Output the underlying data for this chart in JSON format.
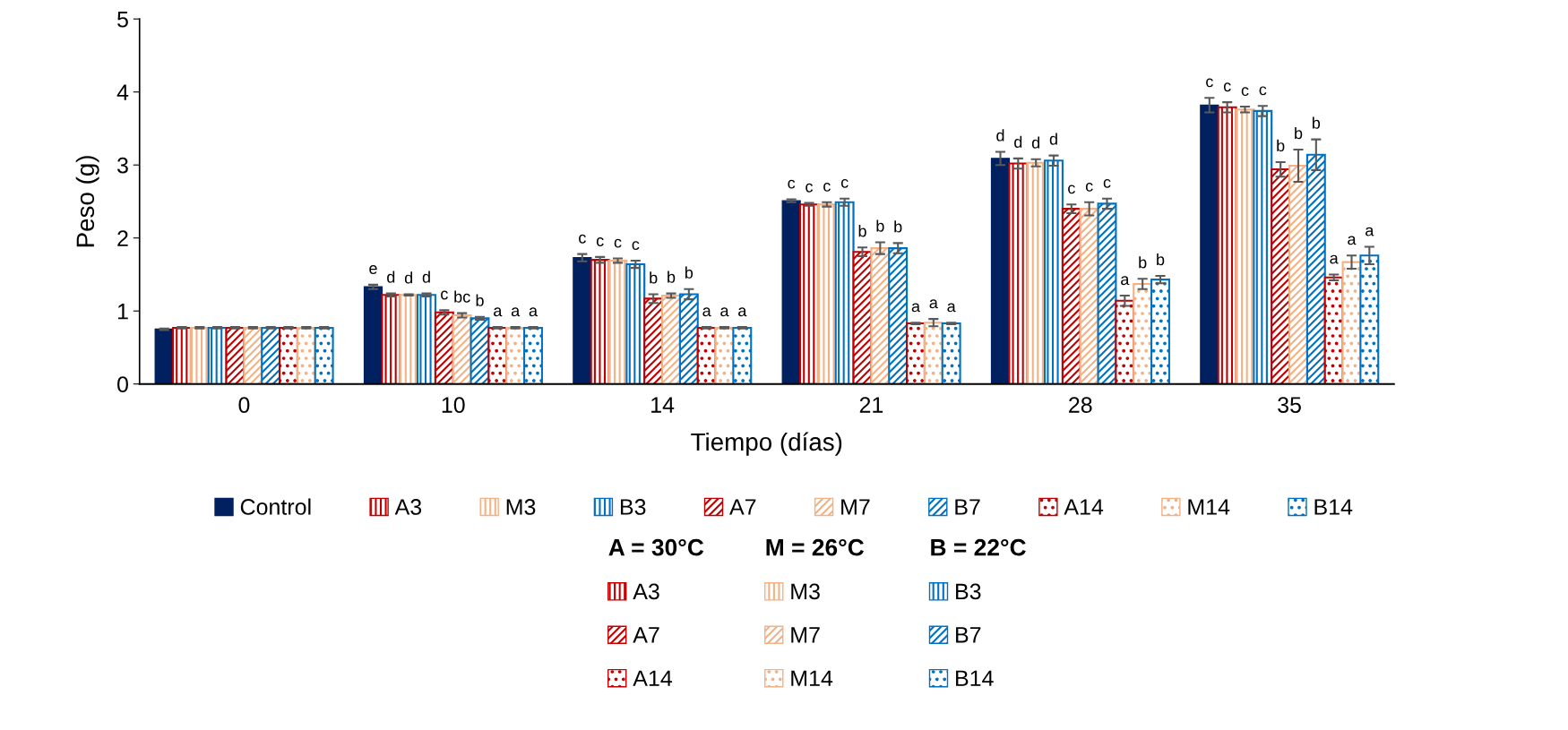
{
  "chart_data": {
    "type": "bar",
    "xlabel": "Tiempo (días)",
    "ylabel": "Peso (g)",
    "categories": [
      "0",
      "10",
      "14",
      "21",
      "28",
      "35"
    ],
    "ylim": [
      0,
      5
    ],
    "yticks": [
      0,
      1,
      2,
      3,
      4,
      5
    ],
    "grid": false,
    "legend": "bottom",
    "annotations": [
      "A = 30°C",
      "M = 26°C",
      "B = 22°C"
    ],
    "series": [
      {
        "name": "Control",
        "color": "#002060",
        "values": [
          0.75,
          1.33,
          1.73,
          2.51,
          3.09,
          3.82
        ],
        "errors": [
          0.01,
          0.03,
          0.05,
          0.02,
          0.09,
          0.1
        ],
        "value_labels": [
          null,
          "e",
          "c",
          "c",
          "d",
          "c"
        ]
      },
      {
        "name": "A3",
        "color": "#c00000",
        "values": [
          0.77,
          1.22,
          1.7,
          2.46,
          3.02,
          3.79
        ],
        "errors": [
          0.01,
          0.02,
          0.04,
          0.02,
          0.07,
          0.07
        ],
        "value_labels": [
          null,
          "d",
          "c",
          "c",
          "d",
          "c"
        ]
      },
      {
        "name": "M3",
        "color": "#f4b183",
        "values": [
          0.77,
          1.22,
          1.69,
          2.46,
          3.03,
          3.76
        ],
        "errors": [
          0.01,
          0.01,
          0.03,
          0.03,
          0.05,
          0.04
        ],
        "value_labels": [
          null,
          "d",
          "c",
          "c",
          "d",
          "c"
        ]
      },
      {
        "name": "B3",
        "color": "#0070c0",
        "values": [
          0.77,
          1.22,
          1.64,
          2.49,
          3.06,
          3.74
        ],
        "errors": [
          0.01,
          0.02,
          0.05,
          0.05,
          0.07,
          0.07
        ],
        "value_labels": [
          null,
          "d",
          "c",
          "c",
          "d",
          "c"
        ]
      },
      {
        "name": "A7",
        "color": "#c00000",
        "values": [
          0.77,
          0.98,
          1.17,
          1.81,
          2.4,
          2.94
        ],
        "errors": [
          0.01,
          0.03,
          0.06,
          0.06,
          0.06,
          0.1
        ],
        "value_labels": [
          null,
          "c",
          "b",
          "b",
          "c",
          "b"
        ]
      },
      {
        "name": "M7",
        "color": "#f4b183",
        "values": [
          0.77,
          0.94,
          1.21,
          1.86,
          2.4,
          2.99
        ],
        "errors": [
          0.01,
          0.03,
          0.03,
          0.08,
          0.09,
          0.22
        ],
        "value_labels": [
          null,
          "bc",
          "b",
          "b",
          "c",
          "b"
        ]
      },
      {
        "name": "B7",
        "color": "#0070c0",
        "values": [
          0.77,
          0.9,
          1.23,
          1.86,
          2.47,
          3.14
        ],
        "errors": [
          0.01,
          0.02,
          0.07,
          0.07,
          0.07,
          0.21
        ],
        "value_labels": [
          null,
          "b",
          "b",
          "b",
          "c",
          "b"
        ]
      },
      {
        "name": "A14",
        "color": "#c00000",
        "values": [
          0.77,
          0.77,
          0.77,
          0.83,
          1.14,
          1.46
        ],
        "errors": [
          0.01,
          0.01,
          0.01,
          0.01,
          0.07,
          0.04
        ],
        "value_labels": [
          null,
          "a",
          "a",
          "a",
          "a",
          "a"
        ]
      },
      {
        "name": "M14",
        "color": "#f4b183",
        "values": [
          0.77,
          0.77,
          0.77,
          0.84,
          1.37,
          1.67
        ],
        "errors": [
          0.01,
          0.01,
          0.01,
          0.05,
          0.07,
          0.09
        ],
        "value_labels": [
          null,
          "a",
          "a",
          "a",
          "b",
          "a"
        ]
      },
      {
        "name": "B14",
        "color": "#0070c0",
        "values": [
          0.77,
          0.77,
          0.77,
          0.83,
          1.43,
          1.76
        ],
        "errors": [
          0.01,
          0.01,
          0.01,
          0.01,
          0.05,
          0.12
        ],
        "value_labels": [
          null,
          "a",
          "a",
          "a",
          "b",
          "a"
        ]
      }
    ]
  }
}
